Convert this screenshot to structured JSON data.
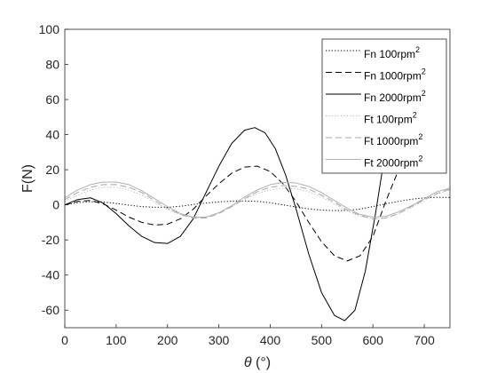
{
  "chart_data": {
    "type": "line",
    "xlabel_symbol": "θ",
    "xlabel_unit": " (°)",
    "ylabel": "F(N)",
    "xlim": [
      0,
      750
    ],
    "ylim": [
      -70,
      100
    ],
    "xticks": [
      0,
      100,
      200,
      300,
      400,
      500,
      600,
      700
    ],
    "yticks": [
      100,
      80,
      60,
      40,
      20,
      0,
      -20,
      -40,
      -60
    ],
    "grid": false,
    "legend_position": "top-right",
    "series": [
      {
        "name": "Fn 100rpm",
        "name_sup": "2",
        "color": "#000000",
        "dash": "dotted",
        "x": [
          0,
          25,
          50,
          75,
          100,
          125,
          150,
          175,
          200,
          225,
          250,
          275,
          300,
          325,
          350,
          375,
          400,
          425,
          450,
          475,
          500,
          525,
          550,
          575,
          600,
          625,
          650,
          675,
          700,
          725,
          750
        ],
        "y": [
          0,
          1.2,
          1.8,
          1.6,
          0.8,
          -0.2,
          -1.0,
          -1.4,
          -1.4,
          -0.8,
          0.2,
          1.0,
          1.7,
          2.1,
          2.2,
          2.0,
          1.2,
          0.0,
          -1.2,
          -2.3,
          -3.0,
          -3.3,
          -3.2,
          -2.4,
          -1.0,
          0.6,
          2.0,
          3.2,
          4.0,
          4.3,
          4.2
        ]
      },
      {
        "name": "Fn 1000rpm",
        "name_sup": "2",
        "color": "#000000",
        "dash": "dashed",
        "x": [
          0,
          25,
          50,
          75,
          100,
          125,
          150,
          175,
          200,
          225,
          250,
          275,
          300,
          325,
          350,
          375,
          400,
          425,
          450,
          475,
          500,
          525,
          550,
          575,
          600,
          625,
          650
        ],
        "y": [
          0,
          2.0,
          2.5,
          0.5,
          -3.0,
          -7.0,
          -10.0,
          -11.5,
          -11.0,
          -8.0,
          -2.5,
          5.0,
          12.0,
          18.0,
          21.5,
          22.0,
          19.0,
          12.0,
          2.0,
          -10.0,
          -21.0,
          -29.0,
          -32.0,
          -29.0,
          -18.0,
          2.0,
          20.0
        ]
      },
      {
        "name": "Fn 2000rpm",
        "name_sup": "2",
        "color": "#000000",
        "dash": "solid",
        "x": [
          0,
          25,
          50,
          75,
          100,
          125,
          150,
          175,
          200,
          225,
          250,
          275,
          300,
          325,
          350,
          370,
          390,
          410,
          430,
          450,
          475,
          500,
          525,
          545,
          565,
          585,
          605,
          625,
          640
        ],
        "y": [
          0,
          3.0,
          4.0,
          1.0,
          -5.0,
          -12.0,
          -18.0,
          -21.5,
          -22.0,
          -18.0,
          -8.0,
          7.0,
          22.0,
          35.0,
          42.5,
          44.0,
          41.0,
          32.0,
          17.0,
          -2.0,
          -28.0,
          -50.0,
          -63.0,
          -66.0,
          -60.0,
          -38.0,
          -5.0,
          32.0,
          56.0
        ]
      },
      {
        "name": "Ft 100rpm",
        "name_sup": "2",
        "color": "#b8b8b8",
        "dash": "dotted",
        "x": [
          0,
          25,
          50,
          75,
          100,
          125,
          150,
          175,
          200,
          225,
          250,
          275,
          300,
          325,
          350,
          375,
          400,
          425,
          450,
          475,
          500,
          525,
          550,
          575,
          600,
          625,
          650,
          675,
          700,
          725,
          750
        ],
        "y": [
          2.0,
          5.5,
          8.5,
          10.0,
          10.0,
          8.5,
          5.5,
          1.5,
          -2.5,
          -5.5,
          -7.5,
          -7.0,
          -4.5,
          -1.0,
          3.0,
          6.5,
          8.5,
          9.5,
          9.2,
          7.5,
          4.5,
          0.5,
          -3.5,
          -6.5,
          -8.0,
          -7.5,
          -5.0,
          -1.5,
          2.5,
          6.0,
          8.5
        ]
      },
      {
        "name": "Ft 1000rpm",
        "name_sup": "2",
        "color": "#a8a8a8",
        "dash": "dashed",
        "x": [
          0,
          25,
          50,
          75,
          100,
          125,
          150,
          175,
          200,
          225,
          250,
          275,
          300,
          325,
          350,
          375,
          400,
          425,
          450,
          475,
          500,
          525,
          550,
          575,
          600,
          625,
          650,
          675,
          700,
          725,
          750
        ],
        "y": [
          3.0,
          7.0,
          10.0,
          11.5,
          11.5,
          10.0,
          7.0,
          2.5,
          -2.0,
          -5.5,
          -7.5,
          -7.5,
          -5.0,
          -1.0,
          3.5,
          7.5,
          10.0,
          11.0,
          10.5,
          9.0,
          5.5,
          1.5,
          -3.0,
          -6.0,
          -8.0,
          -7.5,
          -5.0,
          -1.0,
          3.0,
          6.5,
          9.0
        ]
      },
      {
        "name": "Ft 2000rpm",
        "name_sup": "2",
        "color": "#b0b0b0",
        "dash": "solid",
        "x": [
          0,
          25,
          50,
          75,
          100,
          125,
          150,
          175,
          200,
          225,
          250,
          275,
          300,
          325,
          350,
          375,
          400,
          425,
          450,
          475,
          500,
          525,
          550,
          575,
          600,
          625,
          650,
          675,
          700,
          725,
          750
        ],
        "y": [
          4.0,
          8.5,
          11.5,
          13.0,
          13.0,
          11.5,
          8.0,
          3.5,
          -1.0,
          -5.0,
          -7.0,
          -7.0,
          -4.5,
          -0.5,
          4.5,
          8.5,
          11.5,
          12.8,
          12.5,
          10.5,
          7.0,
          2.5,
          -2.0,
          -5.5,
          -7.0,
          -6.5,
          -4.0,
          -0.5,
          3.5,
          7.5,
          9.5
        ]
      }
    ]
  }
}
